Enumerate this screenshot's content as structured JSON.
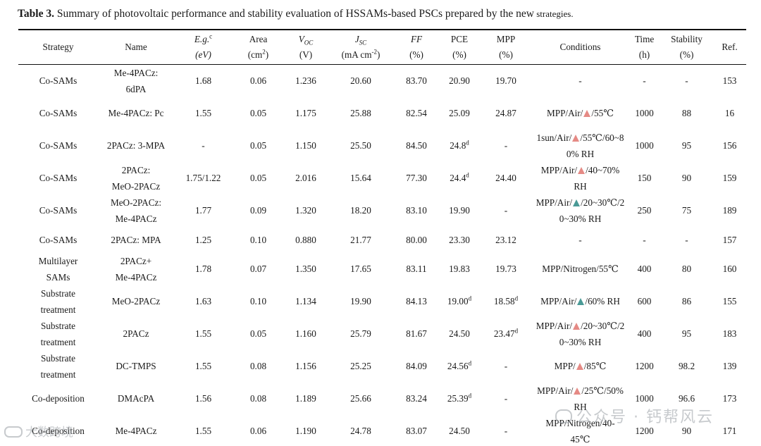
{
  "caption": {
    "label": "Table 3.",
    "text": " Summary of photovoltaic performance and stability evaluation of HSSAMs-based PSCs prepared by the new",
    "tail": " strategies."
  },
  "headers": {
    "strategy": "Strategy",
    "name": "Name",
    "eg": "E.g.",
    "eg_sup": "c",
    "eg_unit": "(eV)",
    "area": "Area",
    "area_unit": "(cm",
    "area_unit_sup": "2",
    "area_unit_close": ")",
    "voc": "V",
    "voc_sub": "OC",
    "voc_unit": "(V)",
    "jsc": "J",
    "jsc_sub": "SC",
    "jsc_unit": "(mA cm",
    "jsc_unit_sup": "-2",
    "jsc_unit_close": ")",
    "ff": "FF",
    "ff_unit": "(%)",
    "pce": "PCE",
    "pce_unit": "(%)",
    "mpp": "MPP",
    "mpp_unit": "(%)",
    "conditions": "Conditions",
    "time": "Time",
    "time_unit": "(h)",
    "stability": "Stability",
    "stability_unit": "(%)",
    "ref": "Ref."
  },
  "rows": [
    {
      "strategy": [
        "Co-SAMs"
      ],
      "name": [
        "Me-4PACz:",
        "6dPA"
      ],
      "eg": "1.68",
      "area": "0.06",
      "voc": "1.236",
      "jsc": "20.60",
      "ff": "83.70",
      "pce": "20.90",
      "pce_sup": "",
      "mpp": "19.70",
      "mpp_sup": "",
      "conditions": [
        "-"
      ],
      "time": "-",
      "stability": "-",
      "ref": "153"
    },
    {
      "strategy": [
        "Co-SAMs"
      ],
      "name": [
        "Me-4PACz: Pc"
      ],
      "eg": "1.55",
      "area": "0.05",
      "voc": "1.175",
      "jsc": "25.88",
      "ff": "82.54",
      "pce": "25.09",
      "pce_sup": "",
      "mpp": "24.87",
      "mpp_sup": "",
      "conditions": [
        "MPP/Air/",
        "tri:pink",
        "/55℃"
      ],
      "time": "1000",
      "stability": "88",
      "ref": "16"
    },
    {
      "strategy": [
        "Co-SAMs"
      ],
      "name": [
        "2PACz: 3-MPA"
      ],
      "eg": "-",
      "area": "0.05",
      "voc": "1.150",
      "jsc": "25.50",
      "ff": "84.50",
      "pce": "24.8",
      "pce_sup": "d",
      "mpp": "-",
      "mpp_sup": "",
      "conditions": [
        "1sun/Air/",
        "tri:pink",
        "/55℃/60~8",
        "br",
        "0% RH"
      ],
      "time": "1000",
      "stability": "95",
      "ref": "156"
    },
    {
      "strategy": [
        "Co-SAMs"
      ],
      "name": [
        "2PACz:",
        "MeO-2PACz"
      ],
      "eg": "1.75/1.22",
      "area": "0.05",
      "voc": "2.016",
      "jsc": "15.64",
      "ff": "77.30",
      "pce": "24.4",
      "pce_sup": "d",
      "mpp": "24.40",
      "mpp_sup": "",
      "conditions": [
        "MPP/Air/",
        "tri:pink",
        "/40~70%",
        "br",
        "RH"
      ],
      "time": "150",
      "stability": "90",
      "ref": "159"
    },
    {
      "strategy": [
        "Co-SAMs"
      ],
      "name": [
        "MeO-2PACz:",
        "Me-4PACz"
      ],
      "eg": "1.77",
      "area": "0.09",
      "voc": "1.320",
      "jsc": "18.20",
      "ff": "83.10",
      "pce": "19.90",
      "pce_sup": "",
      "mpp": "-",
      "mpp_sup": "",
      "conditions": [
        "MPP/Air/",
        "tri:teal",
        "/20~30℃/2",
        "br",
        "0~30% RH"
      ],
      "time": "250",
      "stability": "75",
      "ref": "189"
    },
    {
      "strategy": [
        "Co-SAMs"
      ],
      "name": [
        "2PACz: MPA"
      ],
      "eg": "1.25",
      "area": "0.10",
      "voc": "0.880",
      "jsc": "21.77",
      "ff": "80.00",
      "pce": "23.30",
      "pce_sup": "",
      "mpp": "23.12",
      "mpp_sup": "",
      "conditions": [
        "-"
      ],
      "time": "-",
      "stability": "-",
      "ref": "157"
    },
    {
      "strategy": [
        "Multilayer",
        "SAMs"
      ],
      "name": [
        "2PACz+",
        "Me-4PACz"
      ],
      "eg": "1.78",
      "area": "0.07",
      "voc": "1.350",
      "jsc": "17.65",
      "ff": "83.11",
      "pce": "19.83",
      "pce_sup": "",
      "mpp": "19.73",
      "mpp_sup": "",
      "conditions": [
        "MPP/Nitrogen/55℃"
      ],
      "time": "400",
      "stability": "80",
      "ref": "160"
    },
    {
      "strategy": [
        "Substrate",
        "treatment"
      ],
      "name": [
        "MeO-2PACz"
      ],
      "eg": "1.63",
      "area": "0.10",
      "voc": "1.134",
      "jsc": "19.90",
      "ff": "84.13",
      "pce": "19.00",
      "pce_sup": "d",
      "mpp": "18.58",
      "mpp_sup": "d",
      "conditions": [
        "MPP/Air/",
        "tri:teal",
        "/60% RH"
      ],
      "time": "600",
      "stability": "86",
      "ref": "155"
    },
    {
      "strategy": [
        "Substrate",
        "treatment"
      ],
      "name": [
        "2PACz"
      ],
      "eg": "1.55",
      "area": "0.05",
      "voc": "1.160",
      "jsc": "25.79",
      "ff": "81.67",
      "pce": "24.50",
      "pce_sup": "",
      "mpp": "23.47",
      "mpp_sup": "d",
      "conditions": [
        "MPP/Air/",
        "tri:pink",
        "/20~30℃/2",
        "br",
        "0~30% RH"
      ],
      "time": "400",
      "stability": "95",
      "ref": "183"
    },
    {
      "strategy": [
        "Substrate",
        "treatment"
      ],
      "name": [
        "DC-TMPS"
      ],
      "eg": "1.55",
      "area": "0.08",
      "voc": "1.156",
      "jsc": "25.25",
      "ff": "84.09",
      "pce": "24.56",
      "pce_sup": "d",
      "mpp": "-",
      "mpp_sup": "",
      "conditions": [
        "MPP/",
        "tri:pink",
        "/85℃"
      ],
      "time": "1200",
      "stability": "98.2",
      "ref": "139"
    },
    {
      "strategy": [
        "Co-deposition"
      ],
      "name": [
        "DMAcPA"
      ],
      "eg": "1.56",
      "area": "0.08",
      "voc": "1.189",
      "jsc": "25.66",
      "ff": "83.24",
      "pce": "25.39",
      "pce_sup": "d",
      "mpp": "-",
      "mpp_sup": "",
      "conditions": [
        "MPP/Air/",
        "tri:pink",
        "/25℃/50%",
        "br",
        "RH"
      ],
      "time": "1000",
      "stability": "96.6",
      "ref": "173"
    },
    {
      "strategy": [
        "Co-deposition"
      ],
      "name": [
        "Me-4PACz"
      ],
      "eg": "1.55",
      "area": "0.06",
      "voc": "1.190",
      "jsc": "24.78",
      "ff": "83.07",
      "pce": "24.50",
      "pce_sup": "",
      "mpp": "-",
      "mpp_sup": "",
      "conditions": [
        "MPP/Nitrogen/40-",
        "br",
        "45℃"
      ],
      "time": "1200",
      "stability": "90",
      "ref": "171"
    }
  ],
  "watermarks": {
    "left": "大数跨境",
    "right": "公众号 · 钙帮风云"
  },
  "colors": {
    "triangle_pink": "#e58a85",
    "triangle_teal": "#4a9a96",
    "rule": "#111111"
  }
}
